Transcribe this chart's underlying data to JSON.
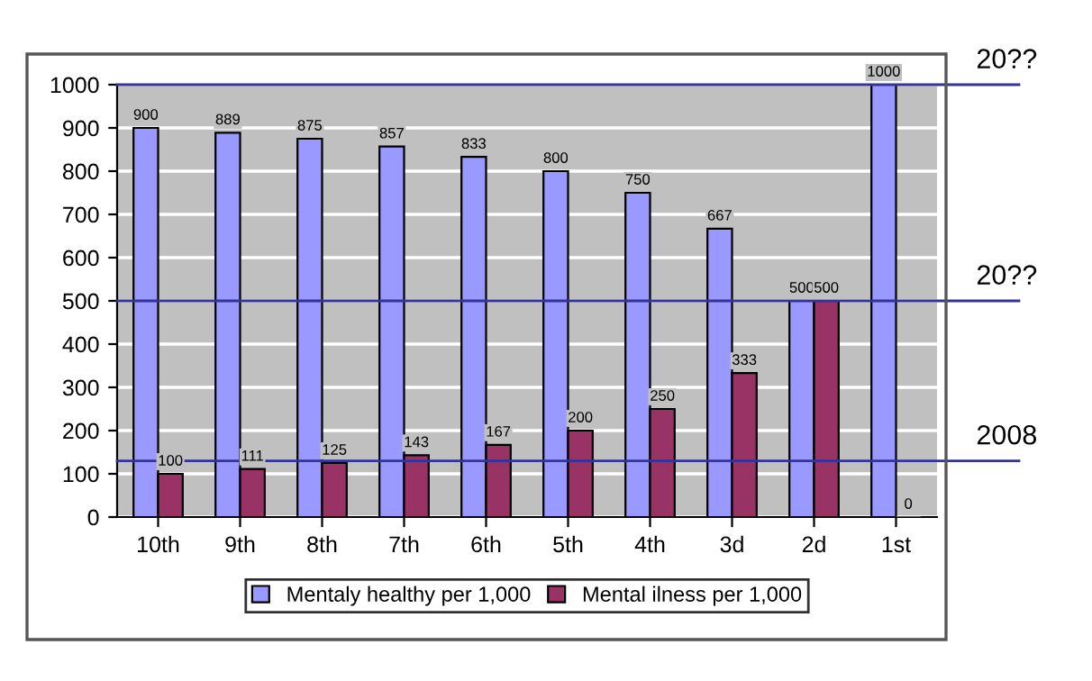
{
  "chart_data": {
    "type": "bar",
    "categories": [
      "10th",
      "9th",
      "8th",
      "7th",
      "6th",
      "5th",
      "4th",
      "3d",
      "2d",
      "1st"
    ],
    "series": [
      {
        "name": "Mentaly healthy per 1,000",
        "color": "#9999ff",
        "values": [
          900,
          889,
          875,
          857,
          833,
          800,
          750,
          667,
          500,
          1000
        ]
      },
      {
        "name": "Mental ilness per 1,000",
        "color": "#993366",
        "values": [
          100,
          111,
          125,
          143,
          167,
          200,
          250,
          333,
          500,
          0
        ]
      }
    ],
    "ylim": [
      0,
      1000
    ],
    "yticks": [
      0,
      100,
      200,
      300,
      400,
      500,
      600,
      700,
      800,
      900,
      1000
    ],
    "grid": "y",
    "legend": "bottom",
    "data_labels": true,
    "ref_lines": [
      {
        "axis": "y",
        "value": 1000,
        "color": "#333399"
      },
      {
        "axis": "y",
        "value": 500,
        "color": "#333399"
      },
      {
        "axis": "y",
        "value": 130,
        "color": "#333399"
      }
    ],
    "annotations": [
      {
        "text": "20??",
        "y": 1000
      },
      {
        "text": "20??",
        "y": 500
      },
      {
        "text": "2008",
        "y": 130
      }
    ]
  }
}
